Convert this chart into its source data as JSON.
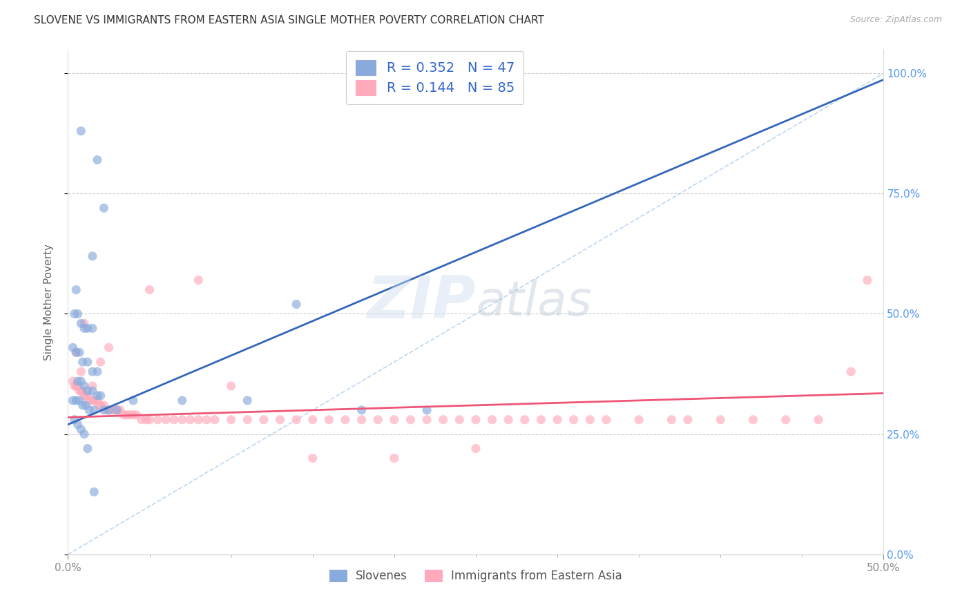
{
  "title": "SLOVENE VS IMMIGRANTS FROM EASTERN ASIA SINGLE MOTHER POVERTY CORRELATION CHART",
  "source": "Source: ZipAtlas.com",
  "ylabel": "Single Mother Poverty",
  "xlim": [
    0.0,
    0.5
  ],
  "ylim": [
    0.0,
    1.05
  ],
  "ytick_positions": [
    0.0,
    0.25,
    0.5,
    0.75,
    1.0
  ],
  "ytick_labels_right": [
    "0.0%",
    "25.0%",
    "50.0%",
    "75.0%",
    "100.0%"
  ],
  "legend_label1": "Slovenes",
  "legend_label2": "Immigrants from Eastern Asia",
  "r1": 0.352,
  "n1": 47,
  "r2": 0.144,
  "n2": 85,
  "color_blue": "#88AADD",
  "color_pink": "#FFAABB",
  "color_line_blue": "#3366BB",
  "color_line_pink": "#EE5577",
  "color_diag": "#AACCEE",
  "background": "#FFFFFF",
  "grid_color": "#CCCCCC",
  "blue_line_x0": 0.0,
  "blue_line_y0": 0.27,
  "blue_line_x1": 0.265,
  "blue_line_y1": 0.65,
  "pink_line_x0": 0.0,
  "pink_line_y0": 0.285,
  "pink_line_x1": 0.5,
  "pink_line_y1": 0.335,
  "blue_x": [
    0.008,
    0.018,
    0.022,
    0.015,
    0.005,
    0.004,
    0.006,
    0.008,
    0.01,
    0.012,
    0.015,
    0.003,
    0.005,
    0.007,
    0.009,
    0.012,
    0.015,
    0.018,
    0.006,
    0.008,
    0.01,
    0.012,
    0.015,
    0.018,
    0.02,
    0.003,
    0.005,
    0.007,
    0.009,
    0.011,
    0.013,
    0.016,
    0.022,
    0.025,
    0.03,
    0.04,
    0.07,
    0.11,
    0.14,
    0.18,
    0.22,
    0.004,
    0.006,
    0.008,
    0.01,
    0.012,
    0.016
  ],
  "blue_y": [
    0.88,
    0.82,
    0.72,
    0.62,
    0.55,
    0.5,
    0.5,
    0.48,
    0.47,
    0.47,
    0.47,
    0.43,
    0.42,
    0.42,
    0.4,
    0.4,
    0.38,
    0.38,
    0.36,
    0.36,
    0.35,
    0.34,
    0.34,
    0.33,
    0.33,
    0.32,
    0.32,
    0.32,
    0.31,
    0.31,
    0.3,
    0.3,
    0.3,
    0.3,
    0.3,
    0.32,
    0.32,
    0.32,
    0.52,
    0.3,
    0.3,
    0.28,
    0.27,
    0.26,
    0.25,
    0.22,
    0.13
  ],
  "pink_x": [
    0.003,
    0.004,
    0.005,
    0.006,
    0.007,
    0.008,
    0.009,
    0.01,
    0.011,
    0.012,
    0.013,
    0.015,
    0.016,
    0.018,
    0.019,
    0.02,
    0.022,
    0.024,
    0.025,
    0.027,
    0.028,
    0.03,
    0.032,
    0.034,
    0.036,
    0.038,
    0.04,
    0.042,
    0.045,
    0.048,
    0.05,
    0.055,
    0.06,
    0.065,
    0.07,
    0.075,
    0.08,
    0.085,
    0.09,
    0.1,
    0.11,
    0.12,
    0.13,
    0.14,
    0.15,
    0.16,
    0.17,
    0.18,
    0.19,
    0.2,
    0.21,
    0.22,
    0.23,
    0.24,
    0.25,
    0.26,
    0.27,
    0.28,
    0.29,
    0.3,
    0.31,
    0.32,
    0.33,
    0.35,
    0.37,
    0.38,
    0.4,
    0.42,
    0.44,
    0.46,
    0.48,
    0.49,
    0.005,
    0.008,
    0.01,
    0.015,
    0.02,
    0.025,
    0.03,
    0.05,
    0.08,
    0.1,
    0.15,
    0.2,
    0.25
  ],
  "pink_y": [
    0.36,
    0.35,
    0.35,
    0.35,
    0.34,
    0.34,
    0.34,
    0.33,
    0.33,
    0.33,
    0.32,
    0.32,
    0.32,
    0.32,
    0.31,
    0.31,
    0.31,
    0.3,
    0.3,
    0.3,
    0.3,
    0.3,
    0.3,
    0.29,
    0.29,
    0.29,
    0.29,
    0.29,
    0.28,
    0.28,
    0.28,
    0.28,
    0.28,
    0.28,
    0.28,
    0.28,
    0.28,
    0.28,
    0.28,
    0.28,
    0.28,
    0.28,
    0.28,
    0.28,
    0.28,
    0.28,
    0.28,
    0.28,
    0.28,
    0.28,
    0.28,
    0.28,
    0.28,
    0.28,
    0.28,
    0.28,
    0.28,
    0.28,
    0.28,
    0.28,
    0.28,
    0.28,
    0.28,
    0.28,
    0.28,
    0.28,
    0.28,
    0.28,
    0.28,
    0.28,
    0.38,
    0.57,
    0.42,
    0.38,
    0.48,
    0.35,
    0.4,
    0.43,
    0.3,
    0.55,
    0.57,
    0.35,
    0.2,
    0.2,
    0.22
  ]
}
